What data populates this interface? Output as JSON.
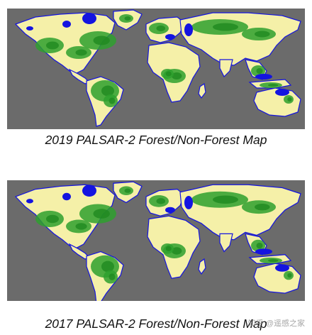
{
  "colors": {
    "background": "#6b6b6b",
    "forest": "#2ea02e",
    "forest_dark": "#1f8a1f",
    "non_forest": "#f5f0a8",
    "water": "#1414e0"
  },
  "legend_classes": [
    "forest",
    "non-forest",
    "water"
  ],
  "maps": [
    {
      "caption": "2019 PALSAR-2 Forest/Non-Forest Map"
    },
    {
      "caption": "2017 PALSAR-2 Forest/Non-Forest Map"
    }
  ],
  "watermark": "知乎 @遥感之家"
}
